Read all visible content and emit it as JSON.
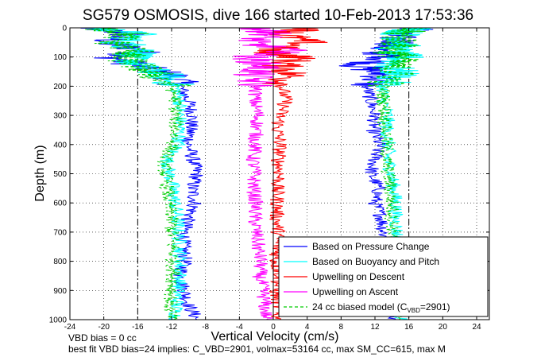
{
  "chart_data": {
    "type": "line",
    "title": "SG579 OSMOSIS, dive 166 started 10-Feb-2013 17:53:36",
    "xlabel": "Vertical Velocity (cm/s)",
    "ylabel": "Depth (m)",
    "xlim": [
      -24,
      25.5
    ],
    "ylim": [
      0,
      1000
    ],
    "y_inverted": true,
    "x_ticks": [
      "-24",
      "-20",
      "-16",
      "-12",
      "-8",
      "-4",
      "0",
      "4",
      "8",
      "12",
      "16",
      "20",
      "24"
    ],
    "y_ticks": [
      "0",
      "100",
      "200",
      "300",
      "400",
      "500",
      "600",
      "700",
      "800",
      "900",
      "1000"
    ],
    "grid": "dotted",
    "reference_lines": [
      -16,
      16
    ],
    "legend_position": "bottom-right",
    "legend": [
      {
        "label": "Based on Pressure Change",
        "color": "#0000ff",
        "style": "solid"
      },
      {
        "label": "Based on Buoyancy and Pitch",
        "color": "#00ffff",
        "style": "solid"
      },
      {
        "label": "Upwelling on Descent",
        "color": "#ff0000",
        "style": "solid"
      },
      {
        "label": "Upwelling on Ascent",
        "color": "#ff00ff",
        "style": "solid"
      },
      {
        "label_main": "24 cc biased model (C",
        "label_sub": "VBD",
        "label_end": "=2901)",
        "color": "#00cc00",
        "style": "dashed"
      }
    ],
    "series": [
      {
        "key": "pressure_descent",
        "color": "#0000ff",
        "depth": [
          0,
          20,
          50,
          80,
          100,
          130,
          160,
          200,
          250,
          300,
          350,
          400,
          450,
          500,
          550,
          600,
          650,
          700,
          750,
          800,
          850,
          900,
          950,
          1000
        ],
        "values": [
          -22,
          -17,
          -20,
          -15,
          -19,
          -16,
          -12,
          -11,
          -10,
          -9.5,
          -9.8,
          -10,
          -9.5,
          -9,
          -9.6,
          -9.2,
          -10,
          -10.5,
          -10.6,
          -10.4,
          -11,
          -10.5,
          -10,
          -9
        ]
      },
      {
        "key": "pressure_ascent",
        "color": "#0000ff",
        "depth": [
          0,
          20,
          50,
          80,
          100,
          130,
          160,
          200,
          250,
          300,
          350,
          400,
          450,
          500,
          550,
          600,
          650,
          700,
          750,
          800,
          850,
          900,
          950,
          1000
        ],
        "values": [
          18,
          14,
          15,
          12,
          14,
          10,
          13,
          11,
          11.5,
          12,
          11.8,
          12.5,
          12,
          11.5,
          12.5,
          12,
          12.8,
          13,
          13.5,
          13.4,
          13.5,
          13.8,
          14,
          14
        ]
      },
      {
        "key": "buoyancy_descent",
        "color": "#00ffff",
        "depth": [
          0,
          20,
          50,
          80,
          100,
          130,
          160,
          200,
          250,
          300,
          350,
          400,
          450,
          500,
          550,
          600,
          650,
          700,
          750,
          800,
          850,
          900,
          950,
          1000
        ],
        "values": [
          -21,
          -16,
          -18,
          -15,
          -17,
          -16,
          -13,
          -11.5,
          -11,
          -11,
          -11,
          -11.2,
          -12.5,
          -12.3,
          -11.8,
          -11.6,
          -11.3,
          -11.2,
          -11,
          -11,
          -11,
          -11.2,
          -11.4,
          -11.5
        ]
      },
      {
        "key": "buoyancy_ascent",
        "color": "#00ffff",
        "depth": [
          0,
          20,
          50,
          80,
          100,
          130,
          160,
          200,
          250,
          300,
          350,
          400,
          450,
          500,
          550,
          600,
          650,
          700,
          750,
          800,
          850,
          900,
          950,
          1000
        ],
        "values": [
          17,
          15,
          15.5,
          14,
          15.5,
          14,
          15,
          13,
          13,
          13.5,
          13.4,
          13.6,
          13.5,
          14,
          14.2,
          14.5,
          14.4,
          14.6,
          14.8,
          14.7,
          14.9,
          15,
          15.2,
          15
        ]
      },
      {
        "key": "upwelling_descent",
        "color": "#ff0000",
        "depth": [
          0,
          20,
          50,
          80,
          100,
          130,
          160,
          200,
          250,
          300,
          350,
          400,
          450,
          500,
          550,
          600,
          650,
          700,
          750,
          800,
          850,
          900,
          950,
          1000
        ],
        "values": [
          5,
          1,
          4,
          -1,
          3,
          1,
          2,
          1,
          1.5,
          0.8,
          0.5,
          0.8,
          0.6,
          0.8,
          0.4,
          0.5,
          0.4,
          0.6,
          0.5,
          0.3,
          0.8,
          0.3,
          0.6,
          0.4
        ]
      },
      {
        "key": "upwelling_ascent",
        "color": "#ff00ff",
        "depth": [
          0,
          20,
          50,
          80,
          100,
          130,
          160,
          200,
          250,
          300,
          350,
          400,
          450,
          500,
          550,
          600,
          650,
          700,
          750,
          800,
          850,
          900,
          950,
          1000
        ],
        "values": [
          -2,
          0,
          -3,
          2,
          -3,
          -1,
          -2.5,
          -2,
          -2.2,
          -1.8,
          -2,
          -2.1,
          -2.4,
          -2.2,
          -2.3,
          -2.1,
          -2.2,
          -2,
          -1.8,
          -1.5,
          -1.6,
          -1.2,
          -1,
          -0.8
        ]
      },
      {
        "key": "biased_model_descent",
        "color": "#00cc00",
        "dashed": true,
        "depth": [
          0,
          20,
          50,
          80,
          100,
          130,
          160,
          200,
          250,
          300,
          350,
          400,
          450,
          500,
          550,
          600,
          650,
          700,
          750,
          800,
          850,
          900,
          950,
          1000
        ],
        "values": [
          -21,
          -17,
          -19,
          -16,
          -18,
          -16,
          -14,
          -12,
          -11.5,
          -11.5,
          -11.5,
          -11.8,
          -12.8,
          -12.8,
          -12.5,
          -12.4,
          -12,
          -12,
          -11.8,
          -11.8,
          -11.8,
          -11.9,
          -12.2,
          -12
        ]
      },
      {
        "key": "biased_model_ascent",
        "color": "#00cc00",
        "dashed": true,
        "depth": [
          0,
          20,
          50,
          80,
          100,
          130,
          160,
          200,
          250,
          300,
          350,
          400,
          450,
          500,
          550,
          600,
          650,
          700,
          750,
          800,
          850,
          900,
          950,
          1000
        ],
        "values": [
          16,
          15,
          15,
          14,
          15,
          14,
          14.5,
          13,
          13,
          13.2,
          13.2,
          13.4,
          13.3,
          13.6,
          13.8,
          14,
          14,
          14.2,
          14.4,
          14.4,
          14.6,
          14.7,
          14.8,
          14.8
        ]
      }
    ]
  },
  "footer": {
    "line1": "VBD bias = 0 cc",
    "line2": "best fit VBD bias=24 implies: C_VBD=2901, volmax=53164 cc, max SM_CC=615, max M"
  }
}
